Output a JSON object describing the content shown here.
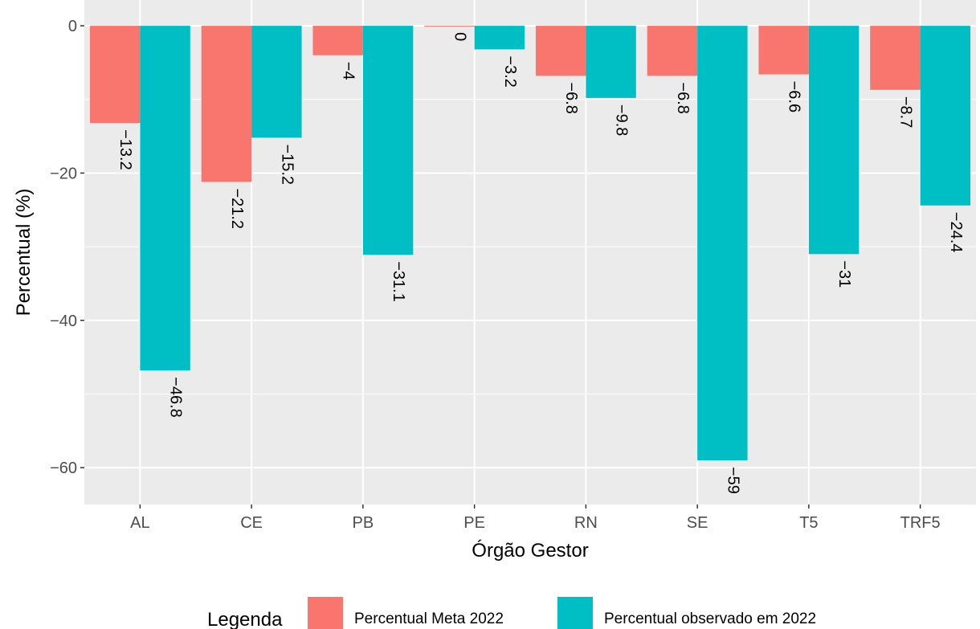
{
  "chart_data": {
    "type": "bar",
    "title": "",
    "xlabel": "Órgão Gestor",
    "ylabel": "Percentual (%)",
    "categories": [
      "AL",
      "CE",
      "PB",
      "PE",
      "RN",
      "SE",
      "T5",
      "TRF5"
    ],
    "series": [
      {
        "name": "Percentual Meta 2022",
        "color": "#F8766D",
        "values": [
          -13.2,
          -21.2,
          -4,
          0,
          -6.8,
          -6.8,
          -6.6,
          -8.7
        ],
        "labels": [
          "-13.2",
          "-21.2",
          "-4",
          "0",
          "-6.8",
          "-6.8",
          "-6.6",
          "-8.7"
        ]
      },
      {
        "name": "Percentual observado em 2022",
        "color": "#00BFC4",
        "values": [
          -46.8,
          -15.2,
          -31.1,
          -3.2,
          -9.8,
          -59,
          -31,
          -24.4
        ],
        "labels": [
          "-46.8",
          "-15.2",
          "-31.1",
          "-3.2",
          "-9.8",
          "-59",
          "-31",
          "-24.4"
        ]
      }
    ],
    "yticks": [
      0,
      -20,
      -40,
      -60
    ],
    "ytick_labels": [
      "0",
      "−20",
      "−40",
      "−60"
    ],
    "ylim": [
      -65,
      3.5
    ],
    "grid": true,
    "legend": {
      "title": "Legenda",
      "position": "bottom"
    }
  }
}
